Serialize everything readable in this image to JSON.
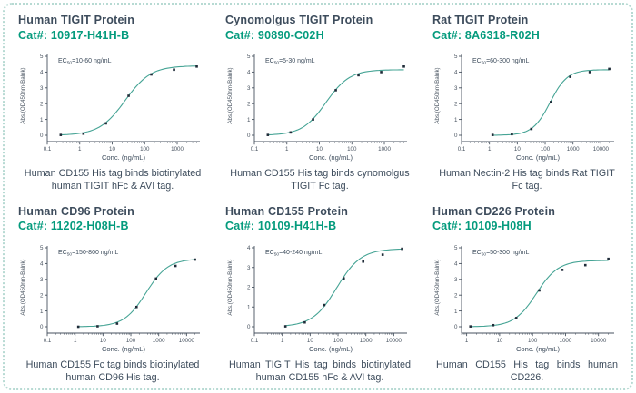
{
  "page": {
    "border_color": "#b7dad3",
    "background": "#ffffff"
  },
  "colors": {
    "title": "#3d4c5c",
    "accent": "#049b7d",
    "curve": "#46a495",
    "point": "#1f2b38",
    "axis": "#47525f",
    "caption": "#3d4c5c"
  },
  "ec50_prefix": "EC",
  "ec50_subscript": "50",
  "chart_data": [
    {
      "type": "scatter",
      "title": "Human TIGIT Protein",
      "catalog": "Cat#: 10917-H41H-B",
      "ec50_text": "=10-60 ng/mL",
      "caption": "Human CD155 His tag binds biotinylated human TIGIT hFc & AVI tag.",
      "xlabel": "Conc. (ng/mL)",
      "ylabel": "Abs.(OD450nm-Balnk)",
      "x": [
        0.26,
        1.3,
        6.4,
        32,
        160,
        800,
        4000
      ],
      "y": [
        0.02,
        0.1,
        0.75,
        2.5,
        3.85,
        4.15,
        4.35
      ],
      "xlim": [
        0.1,
        5000
      ],
      "xticks": [
        0.1,
        1,
        10,
        100,
        1000
      ],
      "ylim": [
        0,
        5
      ],
      "yticks": [
        0,
        1,
        2,
        3,
        4,
        5
      ],
      "fit": {
        "bottom": 0,
        "top": 4.4,
        "ec50": 25,
        "hill": 1.1
      },
      "log_x": true,
      "grid": false
    },
    {
      "type": "scatter",
      "title": "Cynomolgus TIGIT Protein",
      "catalog": "Cat#: 90890-C02H",
      "ec50_text": "=5-30 ng/mL",
      "caption": "Human CD155 His tag binds cynomolgus TIGIT Fc tag.",
      "xlabel": "Conc. (ng/mL)",
      "ylabel": "Abs.(OD450nm-Balnk)",
      "x": [
        0.26,
        1.3,
        6.4,
        32,
        160,
        800,
        4000
      ],
      "y": [
        0.02,
        0.18,
        1.0,
        2.85,
        3.8,
        4.0,
        4.35
      ],
      "xlim": [
        0.1,
        5000
      ],
      "xticks": [
        0.1,
        1,
        10,
        100,
        1000
      ],
      "ylim": [
        0,
        5
      ],
      "yticks": [
        0,
        1,
        2,
        3,
        4,
        5
      ],
      "fit": {
        "bottom": 0,
        "top": 4.15,
        "ec50": 16,
        "hill": 1.2
      },
      "log_x": true,
      "grid": false
    },
    {
      "type": "scatter",
      "title": "Rat TIGIT Protein",
      "catalog": "Cat#: 8A6318-R02H",
      "ec50_text": "=60-300 ng/mL",
      "caption": "Human Nectin-2 His tag binds Rat TIGIT Fc tag.",
      "xlabel": "Conc. (ng/mL)",
      "ylabel": "Abs.(OD450nm-Balnk)",
      "x": [
        1.3,
        6.4,
        32,
        160,
        800,
        4000,
        20000
      ],
      "y": [
        0.02,
        0.07,
        0.4,
        2.1,
        3.7,
        4.0,
        4.2
      ],
      "xlim": [
        0.1,
        30000
      ],
      "xticks": [
        0.1,
        1,
        10,
        100,
        1000,
        10000
      ],
      "ylim": [
        0,
        5
      ],
      "yticks": [
        0,
        1,
        2,
        3,
        4,
        5
      ],
      "fit": {
        "bottom": 0,
        "top": 4.15,
        "ec50": 150,
        "hill": 1.4
      },
      "log_x": true,
      "grid": false
    },
    {
      "type": "scatter",
      "title": "Human CD96 Protein",
      "catalog": "Cat#: 11202-H08H-B",
      "ec50_text": "=150-800 ng/mL",
      "caption": "Human CD155 Fc tag binds biotinylated human CD96 His tag.",
      "xlabel": "Conc. (ng/mL)",
      "ylabel": "Abs.(OD450nm-Balnk)",
      "x": [
        1.3,
        6.4,
        32,
        160,
        800,
        4000,
        20000
      ],
      "y": [
        0.0,
        0.03,
        0.2,
        1.25,
        3.05,
        3.85,
        4.25
      ],
      "xlim": [
        0.1,
        30000
      ],
      "xticks": [
        0.1,
        1,
        10,
        100,
        1000,
        10000
      ],
      "ylim": [
        0,
        5
      ],
      "yticks": [
        0,
        1,
        2,
        3,
        4,
        5
      ],
      "fit": {
        "bottom": 0,
        "top": 4.3,
        "ec50": 350,
        "hill": 1.1
      },
      "log_x": true,
      "grid": false
    },
    {
      "type": "scatter",
      "title": "Human CD155 Protein",
      "catalog": "Cat#: 10109-H41H-B",
      "ec50_text": "=40-240 ng/mL",
      "caption": "Human TIGIT His tag binds biotinylated human CD155 hFc & AVI tag.",
      "xlabel": "Conc. (ng/mL)",
      "ylabel": "Abs.(OD450nm-Balnk)",
      "x": [
        1.3,
        6.4,
        32,
        160,
        800,
        4000,
        20000
      ],
      "y": [
        0.02,
        0.22,
        1.1,
        2.45,
        3.3,
        3.65,
        3.95
      ],
      "xlim": [
        0.1,
        30000
      ],
      "xticks": [
        0.1,
        1,
        10,
        100,
        1000,
        10000
      ],
      "ylim": [
        0,
        4
      ],
      "yticks": [
        0,
        1,
        2,
        3,
        4
      ],
      "fit": {
        "bottom": 0,
        "top": 3.95,
        "ec50": 90,
        "hill": 1.0
      },
      "log_x": true,
      "grid": false
    },
    {
      "type": "scatter",
      "title": "Human CD226 Protein",
      "catalog": "Cat#: 10109-H08H",
      "ec50_text": "=50-300 ng/mL",
      "caption": "Human CD155 His tag binds human CD226.",
      "xlabel": "Conc. (ng/mL)",
      "ylabel": "Abs.(OD450nm-Balnk)",
      "x": [
        1.3,
        6.4,
        32,
        160,
        800,
        4000,
        20000
      ],
      "y": [
        0.02,
        0.1,
        0.55,
        2.3,
        3.6,
        3.9,
        4.3
      ],
      "xlim": [
        0.7,
        30000
      ],
      "xticks": [
        1,
        10,
        100,
        1000,
        10000
      ],
      "ylim": [
        0,
        5
      ],
      "yticks": [
        0,
        1,
        2,
        3,
        4,
        5
      ],
      "fit": {
        "bottom": 0,
        "top": 4.2,
        "ec50": 130,
        "hill": 1.3
      },
      "log_x": true,
      "grid": false
    }
  ]
}
